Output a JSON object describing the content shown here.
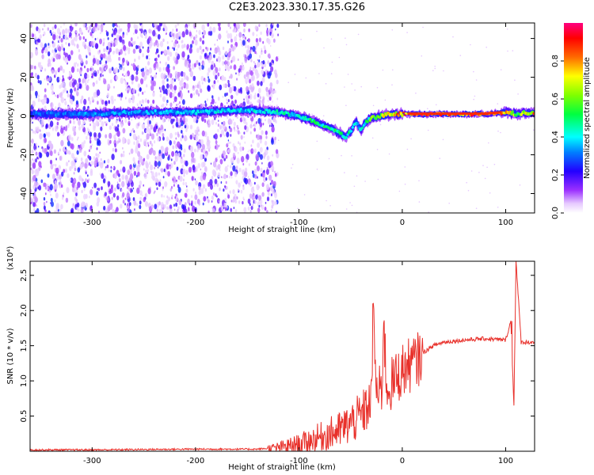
{
  "title": "C2E3.2023.330.17.35.G26",
  "chart_data": [
    {
      "type": "heatmap",
      "xlabel": "Height of straight line (km)",
      "ylabel": "Frequency (Hz)",
      "xlim": [
        -360,
        128
      ],
      "ylim": [
        -50,
        48
      ],
      "x_ticks": [
        -300,
        -200,
        -100,
        0,
        100
      ],
      "y_ticks": [
        -40,
        -20,
        0,
        20,
        40
      ],
      "colorbar": {
        "label": "Normalized spectral amplitude",
        "range": [
          0.0,
          1.0
        ],
        "ticks": [
          0.0,
          0.2,
          0.4,
          0.6,
          0.8
        ],
        "tick_labels": [
          "0.0",
          "0.2",
          "0.4",
          "0.6",
          "0.8"
        ],
        "colormap": "rainbow (white-violet-blue-cyan-green-yellow-red-magenta)"
      },
      "ridge": {
        "x": [
          -360,
          -300,
          -250,
          -200,
          -150,
          -120,
          -100,
          -90,
          -80,
          -70,
          -60,
          -55,
          -50,
          -45,
          -40,
          -35,
          -30,
          -20,
          -10,
          0,
          20,
          50,
          80,
          100,
          110,
          128
        ],
        "frequency": [
          1,
          1,
          2,
          2,
          3,
          2,
          0,
          -2,
          -4,
          -6,
          -9,
          -11,
          -8,
          -3,
          -7,
          -3,
          -1,
          0,
          1,
          1,
          1,
          1,
          1,
          2,
          1,
          2
        ],
        "amplitude": [
          0.3,
          0.35,
          0.35,
          0.4,
          0.4,
          0.45,
          0.45,
          0.5,
          0.5,
          0.5,
          0.5,
          0.5,
          0.45,
          0.4,
          0.4,
          0.5,
          0.6,
          0.7,
          0.8,
          0.85,
          0.9,
          0.92,
          0.9,
          0.88,
          0.6,
          0.8
        ]
      },
      "noise_region_x": [
        -360,
        -130
      ]
    },
    {
      "type": "line",
      "xlabel": "Height of straight line (km)",
      "ylabel": "SNR (10 * v/v)",
      "y_scale_label": "(x10⁴)",
      "xlim": [
        -360,
        128
      ],
      "ylim": [
        0,
        2.7
      ],
      "x_ticks": [
        -300,
        -200,
        -100,
        0,
        100
      ],
      "y_ticks": [
        0.5,
        1.0,
        1.5,
        2.0,
        2.5
      ],
      "y_tick_labels": [
        "0.5",
        "1.0",
        "1.5",
        "2.0",
        "2.5"
      ],
      "color": "#e8302a",
      "x": [
        -360,
        -300,
        -200,
        -140,
        -120,
        -100,
        -80,
        -60,
        -50,
        -40,
        -30,
        -28,
        -25,
        -20,
        -18,
        -15,
        -10,
        -5,
        0,
        5,
        10,
        15,
        20,
        30,
        40,
        60,
        80,
        100,
        105,
        108,
        110,
        115,
        120,
        128
      ],
      "snr": [
        0.02,
        0.02,
        0.03,
        0.03,
        0.05,
        0.1,
        0.2,
        0.3,
        0.4,
        0.5,
        0.7,
        2.1,
        0.8,
        0.85,
        1.8,
        0.9,
        0.95,
        1.05,
        1.15,
        1.2,
        1.25,
        1.3,
        1.4,
        1.5,
        1.55,
        1.58,
        1.6,
        1.58,
        1.85,
        0.65,
        2.7,
        1.55,
        1.55,
        1.55
      ],
      "spikes": [
        {
          "x": -28,
          "snr": 2.1
        },
        {
          "x": -18,
          "snr": 1.82
        },
        {
          "x": 108,
          "snr": 0.65
        },
        {
          "x": 110,
          "snr": 2.7
        },
        {
          "x": 106,
          "snr": 1.85
        }
      ]
    }
  ]
}
